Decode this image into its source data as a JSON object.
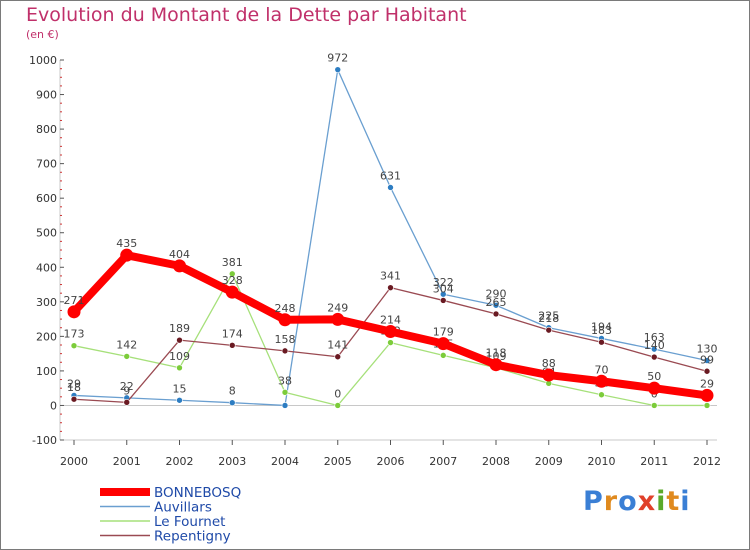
{
  "title": "Evolution du Montant de la Dette par Habitant",
  "subtitle": "(en €)",
  "logo": {
    "text": "Proxiti",
    "letter_colors": [
      "#3a7fd5",
      "#e08a1e",
      "#3a7fd5",
      "#e0402a",
      "#5aaa2a",
      "#e08a1e",
      "#3a7fd5"
    ]
  },
  "chart_data": {
    "type": "line",
    "title": "Evolution du Montant de la Dette par Habitant",
    "ylabel": "(en €)",
    "xlabel": "",
    "x": [
      "2000",
      "2001",
      "2002",
      "2003",
      "2004",
      "2005",
      "2006",
      "2007",
      "2008",
      "2009",
      "2010",
      "2011",
      "2012"
    ],
    "ylim": [
      -100,
      1000
    ],
    "yticks": [
      -100,
      0,
      100,
      200,
      300,
      400,
      500,
      600,
      700,
      800,
      900,
      1000
    ],
    "ytick_labels": [
      "-100",
      "0",
      "100",
      "200",
      "300",
      "400",
      "500",
      "600",
      "700",
      "800",
      "900",
      "1000"
    ],
    "grid": false,
    "legend": "bottom-left",
    "series": [
      {
        "name": "Auvillars",
        "color": "#6a9fd0",
        "point_color": "#2d7dc2",
        "values": [
          29,
          22,
          15,
          8,
          0,
          972,
          631,
          322,
          290,
          225,
          194,
          163,
          130
        ],
        "labels": [
          "29",
          "22",
          "15",
          "8",
          "",
          "972",
          "631",
          "322",
          "290",
          "225",
          "194",
          "163",
          "130"
        ]
      },
      {
        "name": "Le Fournet",
        "color": "#a6e07a",
        "point_color": "#7ccc3a",
        "values": [
          173,
          142,
          109,
          381,
          38,
          0,
          182,
          145,
          109,
          64,
          31,
          0,
          0
        ],
        "labels": [
          "173",
          "142",
          "109",
          "381",
          "38",
          "0",
          "182",
          "145",
          "109",
          "64",
          "31",
          "0",
          "0"
        ]
      },
      {
        "name": "Repentigny",
        "color": "#9a4a52",
        "point_color": "#6a1a22",
        "values": [
          18,
          9,
          189,
          174,
          158,
          141,
          341,
          304,
          265,
          218,
          183,
          140,
          99
        ],
        "labels": [
          "18",
          "9",
          "189",
          "174",
          "158",
          "141",
          "341",
          "304",
          "265",
          "218",
          "183",
          "140",
          "99"
        ]
      },
      {
        "name": "BONNEBOSQ",
        "color": "#ff0000",
        "point_color": "#ff0000",
        "values": [
          271,
          435,
          404,
          328,
          248,
          249,
          214,
          179,
          118,
          88,
          70,
          50,
          29
        ],
        "labels": [
          "271",
          "435",
          "404",
          "328",
          "248",
          "249",
          "214",
          "179",
          "118",
          "88",
          "70",
          "50",
          "29"
        ]
      }
    ],
    "legend_entries": [
      {
        "name": "BONNEBOSQ",
        "color": "#ff0000"
      },
      {
        "name": "Auvillars",
        "color": "#6a9fd0"
      },
      {
        "name": "Le Fournet",
        "color": "#a6e07a"
      },
      {
        "name": "Repentigny",
        "color": "#9a4a52"
      }
    ]
  }
}
